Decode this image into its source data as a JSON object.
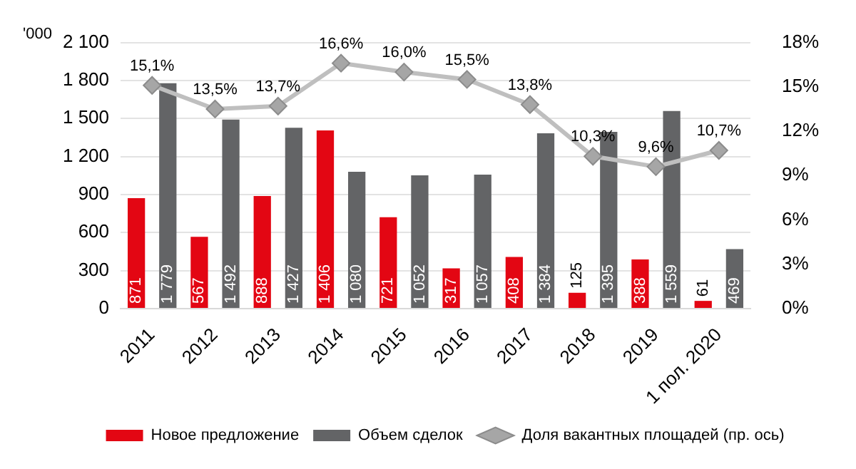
{
  "chart_data": {
    "type": "bar",
    "ylabel": "'000",
    "categories": [
      "2011",
      "2012",
      "2013",
      "2014",
      "2015",
      "2016",
      "2017",
      "2018",
      "2019",
      "1 пол. 2020"
    ],
    "series": [
      {
        "name": "Новое предложение",
        "color": "#e30613",
        "values": [
          871,
          567,
          888,
          1406,
          721,
          317,
          408,
          125,
          388,
          61
        ],
        "value_labels": [
          "871",
          "567",
          "888",
          "1 406",
          "721",
          "317",
          "408",
          "125",
          "388",
          "61"
        ]
      },
      {
        "name": "Объем сделок",
        "color": "#636466",
        "values": [
          1779,
          1492,
          1427,
          1080,
          1052,
          1057,
          1384,
          1395,
          1559,
          469
        ],
        "value_labels": [
          "1 779",
          "1 492",
          "1 427",
          "1 080",
          "1 052",
          "1 057",
          "1 384",
          "1 395",
          "1 559",
          "469"
        ]
      },
      {
        "name": "Доля вакантных площадей (пр. ось)",
        "type": "line",
        "axis": "y2",
        "color": "#bfbfbf",
        "marker": "diamond",
        "values": [
          15.1,
          13.5,
          13.7,
          16.6,
          16.0,
          15.5,
          13.8,
          10.3,
          9.6,
          10.7
        ],
        "value_labels": [
          "15,1%",
          "13,5%",
          "13,7%",
          "16,6%",
          "16,0%",
          "15,5%",
          "13,8%",
          "10,3%",
          "9,6%",
          "10,7%"
        ]
      }
    ],
    "ylim": [
      0,
      2100
    ],
    "yticks": [
      0,
      300,
      600,
      900,
      {
        "value": 1200,
        "label": "1 200"
      },
      {
        "value": 1500,
        "label": "1 500"
      },
      {
        "value": 1800,
        "label": "1 800"
      },
      {
        "value": 2100,
        "label": "2 100"
      }
    ],
    "y2lim": [
      0,
      18
    ],
    "y2ticks": [
      {
        "value": 0,
        "label": "0%"
      },
      {
        "value": 3,
        "label": "3%"
      },
      {
        "value": 6,
        "label": "6%"
      },
      {
        "value": 9,
        "label": "9%"
      },
      {
        "value": 12,
        "label": "12%"
      },
      {
        "value": 15,
        "label": "15%"
      },
      {
        "value": 18,
        "label": "18%"
      }
    ],
    "grid": "y",
    "legend": "bottom"
  }
}
